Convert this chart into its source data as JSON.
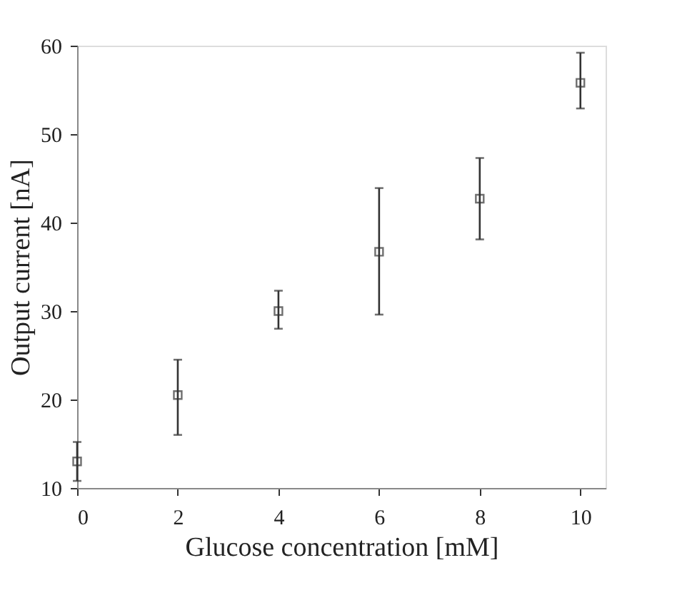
{
  "chart_data": {
    "type": "scatter",
    "xlabel": "Glucose concentration [mM]",
    "ylabel": "Output current [nA]",
    "x": [
      0,
      2,
      4,
      6,
      8,
      10
    ],
    "values": [
      13,
      20.5,
      30,
      36.7,
      42.7,
      55.8
    ],
    "errors": [
      [
        10.8,
        15.2
      ],
      [
        16,
        24.5
      ],
      [
        28,
        32.3
      ],
      [
        29.6,
        43.9
      ],
      [
        38.1,
        47.3
      ],
      [
        52.9,
        59.2
      ]
    ],
    "color": "#333333",
    "marker": "square",
    "xlim": [
      0,
      10.5
    ],
    "ylim": [
      10,
      60
    ],
    "xticks": [
      0,
      2,
      4,
      6,
      8,
      10
    ],
    "yticks": [
      10,
      20,
      30,
      40,
      50,
      60
    ],
    "grid": false
  }
}
